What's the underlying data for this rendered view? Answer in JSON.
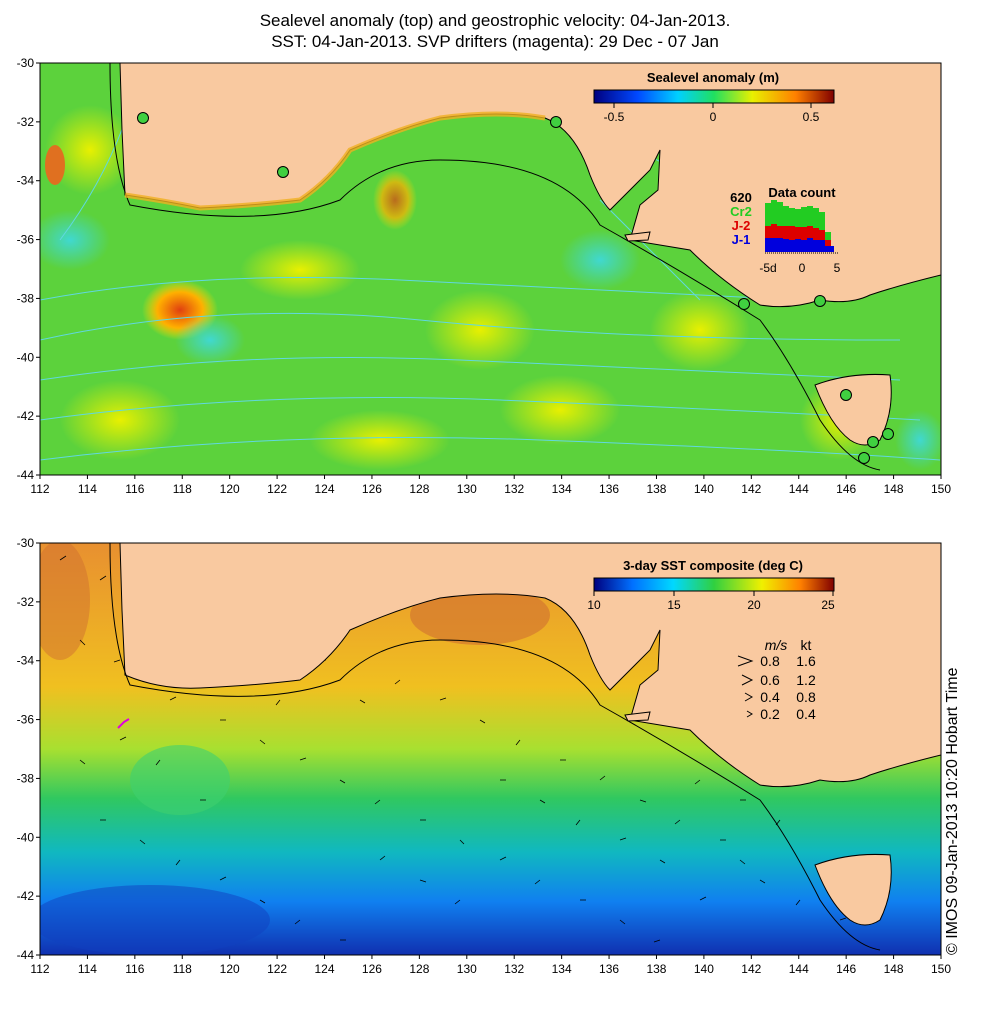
{
  "title": {
    "line1": "Sealevel anomaly (top) and geostrophic velocity: 04-Jan-2013.",
    "line2": "SST: 04-Jan-2013. SVP drifters (magenta): 29 Dec - 07 Jan"
  },
  "credit": "© IMOS 09-Jan-2013 10:20 Hobart Time",
  "axes": {
    "lat_ticks": [
      "-30",
      "-32",
      "-34",
      "-36",
      "-38",
      "-40",
      "-42",
      "-44"
    ],
    "lon_ticks": [
      "112",
      "114",
      "116",
      "118",
      "120",
      "122",
      "124",
      "126",
      "128",
      "130",
      "132",
      "134",
      "136",
      "138",
      "140",
      "142",
      "144",
      "146",
      "148",
      "150"
    ]
  },
  "top_panel": {
    "colorbar": {
      "title": "Sealevel anomaly (m)",
      "ticks": [
        "-0.5",
        "0",
        "0.5"
      ]
    },
    "data_count": {
      "title": "Data count",
      "count": "620",
      "series": [
        {
          "name": "Cr2",
          "color": "#22cc22"
        },
        {
          "name": "J-2",
          "color": "#dd0000"
        },
        {
          "name": "J-1",
          "color": "#0000dd"
        }
      ],
      "xticks": [
        "-5d",
        "0",
        "5"
      ]
    },
    "tide_gauges": [
      "116.0,-31.8",
      "122.0,-33.7",
      "133.6,-32.0",
      "141.6,-38.2",
      "144.9,-38.0",
      "146.0,-41.3",
      "147.2,-42.8",
      "147.8,-42.5",
      "146.8,-43.4"
    ]
  },
  "bottom_panel": {
    "colorbar": {
      "title": "3-day SST composite (deg C)",
      "ticks": [
        "10",
        "15",
        "20",
        "25"
      ]
    },
    "velocity_key": {
      "headers": [
        "m/s",
        "kt"
      ],
      "rows": [
        [
          "0.8",
          "1.6"
        ],
        [
          "0.6",
          "1.2"
        ],
        [
          "0.4",
          "0.8"
        ],
        [
          "0.2",
          "0.4"
        ]
      ]
    }
  },
  "colors": {
    "land": "#f9c9a0",
    "ssh_scale": [
      "#00007f",
      "#0048ff",
      "#00d0ff",
      "#20e060",
      "#e8f000",
      "#ff8000",
      "#800000"
    ],
    "sst_scale": [
      "#00007f",
      "#0070ff",
      "#00d8ff",
      "#30d040",
      "#f0f000",
      "#ff8000",
      "#800000"
    ]
  }
}
